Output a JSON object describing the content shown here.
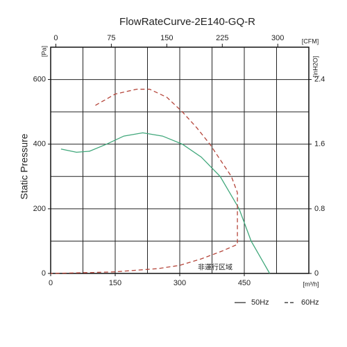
{
  "chart_data": {
    "type": "line",
    "title": "FlowRateCurve-2E140-GQ-R",
    "y_label": "Static Pressure",
    "y_unit": "[Pa]",
    "y2_unit": "[inH2O]",
    "x_unit": "[m³/h]",
    "x2_unit": "[CFM]",
    "annotation": "非運行区域",
    "xlim": [
      0,
      600
    ],
    "xticks": [
      0,
      150,
      300,
      450
    ],
    "xgrid": [
      75,
      150,
      225,
      300,
      375,
      450,
      525
    ],
    "x2lim": [
      -7,
      342
    ],
    "x2ticks": [
      0,
      75,
      150,
      225,
      300
    ],
    "ylim": [
      0,
      700
    ],
    "yticks": [
      0,
      200,
      400,
      600
    ],
    "ygrid": [
      100,
      200,
      300,
      400,
      500,
      600
    ],
    "y2lim": [
      0,
      2.8
    ],
    "y2ticks": [
      0,
      0.8,
      1.6,
      2.4
    ],
    "series": [
      {
        "name": "50Hz",
        "color": "#3fa77a",
        "dash": false,
        "x": [
          24,
          60,
          90,
          130,
          170,
          214,
          260,
          306,
          350,
          394,
          438,
          466,
          509
        ],
        "values": [
          385,
          375,
          378,
          400,
          425,
          435,
          425,
          400,
          360,
          300,
          200,
          100,
          0
        ]
      },
      {
        "name": "60Hz",
        "color": "#b5453a",
        "dash": true,
        "x": [
          104,
          150,
          200,
          230,
          270,
          306,
          340,
          370,
          395,
          420,
          434,
          434,
          400,
          350,
          300,
          250,
          200,
          150,
          100,
          0
        ],
        "values": [
          520,
          555,
          570,
          570,
          545,
          500,
          450,
          400,
          350,
          300,
          250,
          90,
          70,
          45,
          25,
          15,
          10,
          5,
          3,
          0
        ]
      }
    ]
  }
}
